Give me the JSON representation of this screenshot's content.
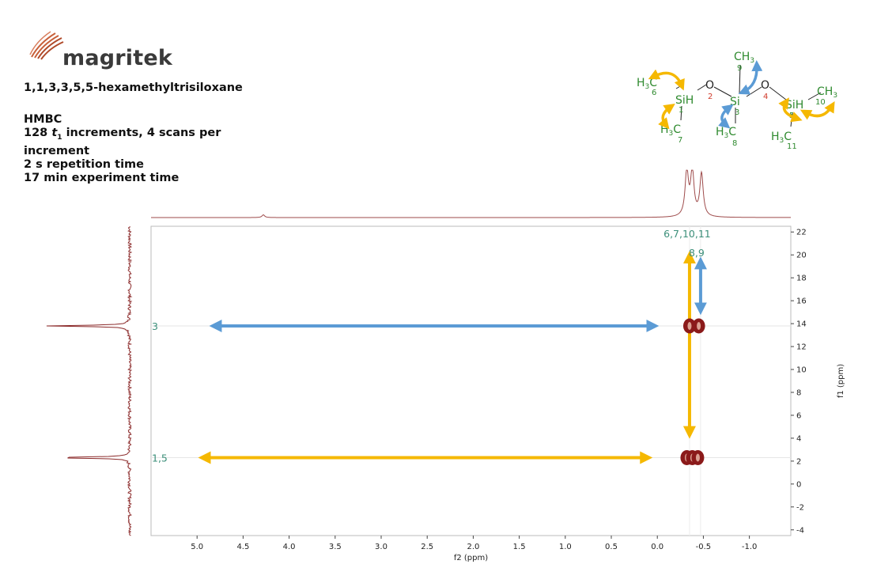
{
  "brand": {
    "name": "magritek"
  },
  "header": {
    "compound": "1,1,3,3,5,5-hexamethyltrisiloxane",
    "experiment": "HMBC",
    "increments_pre": "128 ",
    "increments_t": "t",
    "increments_sub": "1",
    "increments_post": " increments, 4 scans per",
    "increments_line2": "increment",
    "repetition": "2 s repetition time",
    "duration": "17 min experiment time"
  },
  "molecule": {
    "groups": [
      {
        "id": "h3c-6",
        "base": "H",
        "sub": "3",
        "tail": "C",
        "num": "6"
      },
      {
        "id": "sih-1",
        "text": "SiH",
        "num": "1"
      },
      {
        "id": "h3c-7",
        "base": "H",
        "sub": "3",
        "tail": "C",
        "num": "7"
      },
      {
        "id": "o-2",
        "text": "O",
        "num": "2"
      },
      {
        "id": "ch3-9",
        "base": "CH",
        "sub": "3",
        "num": "9"
      },
      {
        "id": "si-3",
        "text": "Si",
        "num": "3"
      },
      {
        "id": "h3c-8",
        "base": "H",
        "sub": "3",
        "tail": "C",
        "num": "8"
      },
      {
        "id": "o-4",
        "text": "O",
        "num": "4"
      },
      {
        "id": "sih-5",
        "text": "SiH",
        "num": "5"
      },
      {
        "id": "ch3-10",
        "base": "CH",
        "sub": "3",
        "num": "10"
      },
      {
        "id": "h3c-11",
        "base": "H",
        "sub": "3",
        "tail": "C",
        "num": "11"
      }
    ]
  },
  "chart_data": {
    "type": "heatmap",
    "xlabel": "f2 (ppm)",
    "ylabel": "f1 (ppm)",
    "x_reversed": true,
    "y_reversed": true,
    "xlim": [
      5.5,
      -1.45
    ],
    "ylim": [
      22.5,
      -4.5
    ],
    "x_ticks": [
      5.0,
      4.5,
      4.0,
      3.5,
      3.0,
      2.5,
      2.0,
      1.5,
      1.0,
      0.5,
      0.0,
      -0.5,
      -1.0
    ],
    "x_tick_labels": [
      "5.0",
      "4.5",
      "4.0",
      "3.5",
      "3.0",
      "2.5",
      "2.0",
      "1.5",
      "1.0",
      "0.5",
      "0.0",
      "-0.5",
      "-1.0"
    ],
    "y_ticks": [
      22,
      20,
      18,
      16,
      14,
      12,
      10,
      8,
      6,
      4,
      2,
      0,
      -2,
      -4
    ],
    "y_tick_labels": [
      "22",
      "20",
      "18",
      "16",
      "14",
      "12",
      "10",
      "8",
      "6",
      "4",
      "2",
      "0",
      "2",
      "4"
    ],
    "cross_peaks": [
      {
        "f2": -0.35,
        "f1": 13.8
      },
      {
        "f2": -0.45,
        "f1": 13.8
      },
      {
        "f2": -0.32,
        "f1": 2.3
      },
      {
        "f2": -0.38,
        "f1": 2.3
      },
      {
        "f2": -0.44,
        "f1": 2.3
      }
    ],
    "f2_projection_peaks": [
      {
        "ppm": 4.28,
        "height": 0.06
      },
      {
        "ppm": -0.32,
        "height": 1.0
      },
      {
        "ppm": -0.38,
        "height": 1.0
      },
      {
        "ppm": -0.48,
        "height": 0.95
      }
    ],
    "f1_projection_peaks": [
      {
        "ppm": 13.8,
        "height": 1.0
      },
      {
        "ppm": 2.3,
        "height": 1.0
      }
    ],
    "row_labels": [
      {
        "label": "3",
        "f1": 13.8
      },
      {
        "label": "1,5",
        "f1": 2.3
      }
    ],
    "column_labels": [
      {
        "label": "6,7,10,11",
        "f2": -0.35
      },
      {
        "label": "8,9",
        "f2": -0.47
      }
    ],
    "annotations": [
      {
        "color": "blue",
        "from_f2": 4.8,
        "to_f2": 0.05,
        "f1": 13.8
      },
      {
        "color": "yellow",
        "from_f2": 4.92,
        "to_f2": 0.12,
        "f1": 2.3
      },
      {
        "color": "yellow",
        "f2": -0.35,
        "from_f1": 19.8,
        "to_f1": 4.5
      },
      {
        "color": "blue",
        "f2": -0.47,
        "from_f1": 19.3,
        "to_f1": 15.3
      }
    ],
    "colors": {
      "peak": "#8b1a1a",
      "trace": "#9e4b4b",
      "blue_arrow": "#5b9bd5",
      "yellow_arrow": "#f5b800",
      "label": "#3c8f7a",
      "molecule": "#2f8a2f"
    }
  }
}
